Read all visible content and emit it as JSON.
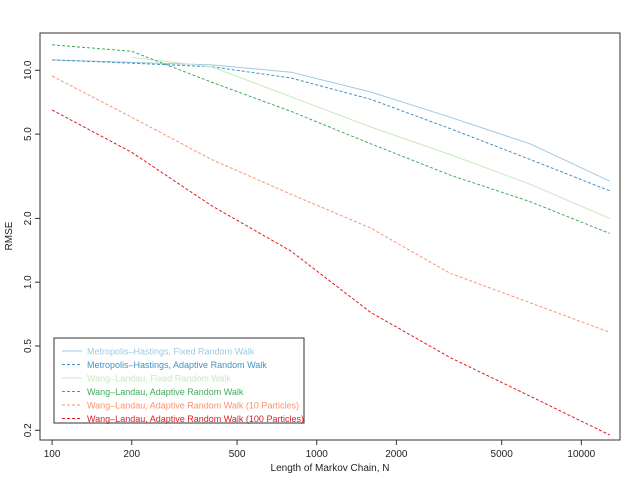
{
  "chart_data": {
    "type": "line",
    "xlabel": "Length of Markov Chain, N",
    "ylabel": "RMSE",
    "xscale": "log",
    "yscale": "log",
    "xlim": [
      90,
      14000
    ],
    "ylim": [
      0.18,
      15
    ],
    "x": [
      100,
      200,
      400,
      800,
      1600,
      3200,
      6400,
      12800
    ],
    "xticks": [
      100,
      200,
      500,
      1000,
      2000,
      5000,
      10000
    ],
    "xtick_labels": [
      "100",
      "200",
      "500",
      "1000",
      "2000",
      "5000",
      "10000"
    ],
    "yticks": [
      0.2,
      0.5,
      1.0,
      2.0,
      5.0,
      10.0
    ],
    "ytick_labels": [
      "0.2",
      "0.5",
      "1.0",
      "2.0",
      "5.0",
      "10.0"
    ],
    "legend_position": "bottom-left",
    "grid": false,
    "series": [
      {
        "name": "Metropolis–Hastings, Fixed Random Walk",
        "color": "#9ecae1",
        "dash": "solid",
        "values": [
          11.2,
          10.9,
          10.6,
          9.8,
          7.9,
          6.0,
          4.5,
          3.0
        ]
      },
      {
        "name": "Metropolis–Hastings, Adaptive Random Walk",
        "color": "#4292c6",
        "dash": "dashed",
        "values": [
          11.2,
          10.8,
          10.4,
          9.2,
          7.3,
          5.3,
          3.8,
          2.7
        ]
      },
      {
        "name": "Wang–Landau, Fixed Random Walk",
        "color": "#c7e9c0",
        "dash": "solid",
        "values": [
          null,
          11.5,
          10.4,
          7.5,
          5.4,
          4.0,
          2.9,
          2.0
        ]
      },
      {
        "name": "Wang–Landau, Adaptive Random Walk",
        "color": "#41ab5d",
        "dash": "dashed",
        "values": [
          13.2,
          12.3,
          8.8,
          6.4,
          4.5,
          3.2,
          2.4,
          1.7
        ]
      },
      {
        "name": "Wang–Landau, Adaptive Random Walk (10 Particles)",
        "color": "#fc9272",
        "dash": "dashed",
        "values": [
          9.4,
          6.0,
          3.8,
          2.6,
          1.8,
          1.1,
          0.8,
          0.58
        ]
      },
      {
        "name": "Wang–Landau, Adaptive Random Walk (100 Particles)",
        "color": "#e31a1c",
        "dash": "dashed",
        "values": [
          6.5,
          4.1,
          2.3,
          1.4,
          0.72,
          0.44,
          0.29,
          0.19
        ]
      }
    ]
  }
}
